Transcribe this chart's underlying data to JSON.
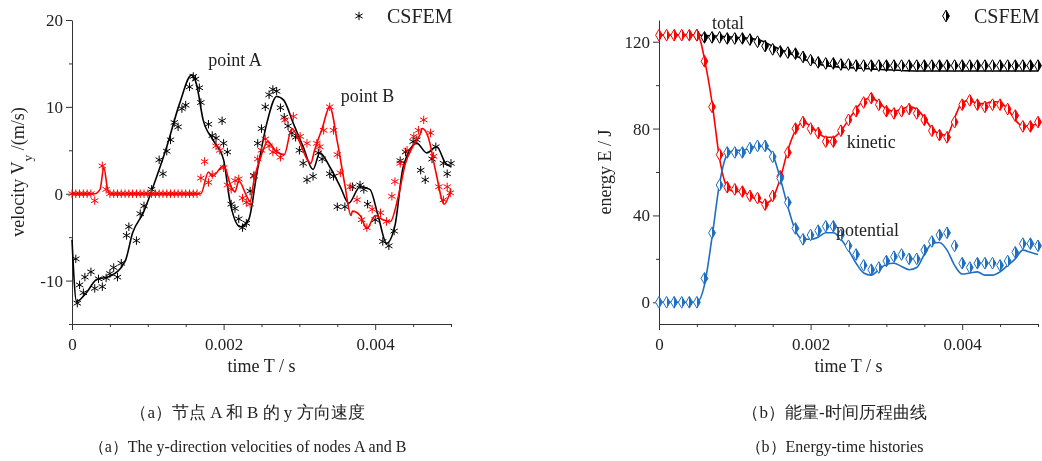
{
  "chart_data": [
    {
      "type": "line",
      "title": "（a）节点 A 和 B 的 y 方向速度",
      "subtitle": "（a）The y-direction velocities of nodes A and B",
      "xlabel": "time T / s",
      "ylabel": "velocity V$_{y}$ /(m/s)",
      "xlim": [
        0,
        0.005
      ],
      "ylim": [
        -15,
        20
      ],
      "xticks": [
        0,
        {
          "value": 0.0005,
          "label": null
        },
        {
          "value": 0.001,
          "label": null
        },
        {
          "value": 0.0015,
          "label": null
        },
        0.002,
        {
          "value": 0.0025,
          "label": null
        },
        {
          "value": 0.003,
          "label": null
        },
        {
          "value": 0.0035,
          "label": null
        },
        0.004,
        {
          "value": 0.0045,
          "label": null
        },
        {
          "value": 0.005,
          "label": null
        }
      ],
      "yticks": [
        {
          "value": -15,
          "label": null
        },
        -10,
        {
          "value": -5,
          "label": null
        },
        0,
        {
          "value": 5,
          "label": null
        },
        10,
        {
          "value": 15,
          "label": null
        },
        20
      ],
      "grid": false,
      "legend": "top right",
      "annotations": [
        "point A",
        "point B"
      ],
      "series": [
        {
          "type": "line",
          "color": "#000000",
          "marker": "none",
          "x": [
            0,
            6e-05,
            0.00019,
            0.00032,
            0.0005,
            0.0007,
            0.0008,
            0.00094,
            0.00107,
            0.00125,
            0.00142,
            0.00158,
            0.00164,
            0.00173,
            0.00186,
            0.002,
            0.00208,
            0.00222,
            0.00233,
            0.00244,
            0.00257,
            0.0027,
            0.00279,
            0.00292,
            0.00305,
            0.00318,
            0.00327,
            0.0034,
            0.00354,
            0.00365,
            0.0038,
            0.00393,
            0.00404,
            0.00415,
            0.00426,
            0.00437,
            0.00455,
            0.00468,
            0.00481,
            0.00493,
            0.005
          ],
          "values": [
            -5.3,
            -12.4,
            -11.4,
            -9.9,
            -9.5,
            -7.8,
            -4.5,
            -2.2,
            0.8,
            5.4,
            10.4,
            13.7,
            12.7,
            8.5,
            6.2,
            3.9,
            -0.7,
            -3.8,
            -3,
            2.4,
            8.1,
            11.2,
            10.8,
            8.1,
            5.4,
            2.8,
            4.7,
            3.1,
            0.8,
            -1.1,
            0.8,
            0.5,
            -2.6,
            -5.7,
            -3.7,
            3.1,
            5.8,
            4.7,
            5.4,
            3.5,
            3.1
          ]
        },
        {
          "type": "scatter",
          "name": "CSFEM",
          "color": "#000000",
          "marker": "cross",
          "x": [
            5e-05,
            7e-05,
            0.0001,
            0.00015,
            0.00017,
            0.00025,
            0.0003,
            0.00035,
            0.0004,
            0.00045,
            0.0005,
            0.00055,
            0.0006,
            0.00065,
            0.00072,
            0.00075,
            0.00085,
            0.0009,
            0.00095,
            0.00105,
            0.00115,
            0.0012,
            0.00125,
            0.0013,
            0.00135,
            0.0014,
            0.00145,
            0.0015,
            0.00155,
            0.0016,
            0.00163,
            0.00168,
            0.0017,
            0.0018,
            0.00185,
            0.0019,
            0.00198,
            0.002,
            0.00205,
            0.0021,
            0.00215,
            0.0022,
            0.00225,
            0.0023,
            0.00235,
            0.0024,
            0.00245,
            0.0025,
            0.00255,
            0.0026,
            0.00265,
            0.0027,
            0.00275,
            0.0028,
            0.00285,
            0.0029,
            0.00295,
            0.003,
            0.00305,
            0.0031,
            0.00318,
            0.00325,
            0.0033,
            0.0034,
            0.00345,
            0.0035,
            0.0036,
            0.0037,
            0.0038,
            0.00385,
            0.0039,
            0.004,
            0.0041,
            0.00418,
            0.00425,
            0.00433,
            0.0044,
            0.0045,
            0.00455,
            0.0046,
            0.00466,
            0.00475,
            0.0048,
            0.0049,
            0.00495,
            0.005
          ],
          "values": [
            -7.5,
            -12.6,
            -10.5,
            -11.4,
            -9.6,
            -9,
            -10.9,
            -9.8,
            -10.7,
            -9.7,
            -9.2,
            -8.5,
            -9.6,
            -8,
            -4.8,
            -3.8,
            -5.4,
            -2.3,
            -1.4,
            0.5,
            3.9,
            2.3,
            4.9,
            6.2,
            8.2,
            7.7,
            9.8,
            10.2,
            12.3,
            13.5,
            13.2,
            12.2,
            10.5,
            8,
            6.7,
            6.4,
            8.4,
            5.8,
            4.8,
            -1.2,
            -1.7,
            -2.9,
            -3.9,
            -3.4,
            0.3,
            2.1,
            5.8,
            7.5,
            10,
            11.4,
            12,
            11.8,
            9.9,
            8.8,
            7.8,
            7,
            6.5,
            5,
            3.5,
            1.6,
            2,
            4.7,
            4,
            2.3,
            2,
            -1.5,
            -1.5,
            0.8,
            1,
            0.5,
            -1.2,
            -3,
            -5.5,
            -6,
            -4.3,
            3.8,
            4.8,
            6,
            6.2,
            2.7,
            1.6,
            4,
            5.4,
            3.5,
            2.3,
            3.5
          ]
        },
        {
          "type": "line",
          "color": "#ff0000",
          "marker": "none",
          "x": [
            0,
            0.0003,
            0.00037,
            0.00042,
            0.00047,
            0.0005,
            0.0017,
            0.0018,
            0.00185,
            0.002,
            0.0021,
            0.00215,
            0.0022,
            0.0023,
            0.00235,
            0.0024,
            0.0025,
            0.00258,
            0.0027,
            0.0028,
            0.0029,
            0.003,
            0.0031,
            0.00315,
            0.0032,
            0.0033,
            0.0034,
            0.0035,
            0.0036,
            0.00368,
            0.0037,
            0.0038,
            0.00389,
            0.004,
            0.0041,
            0.0042,
            0.0043,
            0.0044,
            0.0045,
            0.0046,
            0.00462,
            0.0047,
            0.0048,
            0.00491,
            0.005
          ],
          "values": [
            0,
            0,
            0.5,
            3,
            0.5,
            0,
            0,
            2.5,
            2,
            3.2,
            0.8,
            0.2,
            1.5,
            -0.2,
            -0.9,
            1.5,
            4.5,
            6,
            4.8,
            4.5,
            7.5,
            6,
            4,
            3.5,
            5,
            7.5,
            10,
            6,
            1,
            -2.5,
            -2,
            -2.5,
            -4,
            -2.5,
            -3,
            -3.2,
            -0.5,
            3.5,
            5.5,
            7,
            7.5,
            6.5,
            2.5,
            -1.2,
            0.5
          ]
        },
        {
          "type": "scatter",
          "color": "#ff0000",
          "marker": "cross",
          "x": [
            0,
            5e-05,
            0.0001,
            0.00015,
            0.0002,
            0.00025,
            0.0003,
            0.0004,
            0.00045,
            0.0005,
            0.00055,
            0.0006,
            0.00065,
            0.0007,
            0.00075,
            0.0008,
            0.00085,
            0.0009,
            0.00095,
            0.001,
            0.00105,
            0.0011,
            0.00115,
            0.0012,
            0.00125,
            0.0013,
            0.00135,
            0.0014,
            0.00145,
            0.0015,
            0.00155,
            0.0016,
            0.00165,
            0.0017,
            0.00175,
            0.0018,
            0.00185,
            0.0019,
            0.00195,
            0.002,
            0.00205,
            0.0021,
            0.00215,
            0.0022,
            0.00225,
            0.0023,
            0.00235,
            0.0024,
            0.00245,
            0.0025,
            0.00255,
            0.0026,
            0.00265,
            0.0027,
            0.00275,
            0.00281,
            0.00292,
            0.00301,
            0.0031,
            0.00323,
            0.00327,
            0.00332,
            0.0034,
            0.00345,
            0.0035,
            0.00354,
            0.00367,
            0.00376,
            0.00382,
            0.00389,
            0.00396,
            0.00407,
            0.00415,
            0.00422,
            0.00426,
            0.00433,
            0.00442,
            0.00451,
            0.00457,
            0.00464,
            0.00473,
            0.00477,
            0.00484,
            0.0049,
            0.00495,
            0.00499
          ],
          "values": [
            0,
            0,
            0,
            0,
            0,
            0,
            -0.8,
            3.2,
            0.5,
            0,
            0,
            0,
            0,
            0,
            0,
            0,
            0,
            0,
            0,
            0,
            0,
            0,
            0,
            0,
            0,
            0,
            0,
            0,
            0,
            0,
            0,
            0,
            0,
            1.8,
            3.7,
            1.3,
            2.2,
            5.5,
            5,
            3,
            1,
            0.5,
            1.5,
            1.7,
            -0.5,
            -1,
            -1.2,
            2,
            4,
            5,
            6.3,
            5.5,
            4.8,
            4.9,
            4.2,
            8.5,
            8.9,
            6.6,
            5.8,
            5.8,
            5.4,
            7.3,
            10,
            7.3,
            4.5,
            2.4,
            0.8,
            -0.7,
            -3,
            -3.9,
            -1.8,
            -2.2,
            -3.2,
            -0.3,
            1.4,
            3.5,
            5,
            6.6,
            7.3,
            8.5,
            7,
            4.3,
            0.8,
            -0.7,
            0.8,
            0.1
          ]
        }
      ]
    },
    {
      "type": "line",
      "title": "（b）能量-时间历程曲线",
      "subtitle": "（b）Energy-time histories",
      "xlabel": "time T / s",
      "ylabel": "energy E / J",
      "xlim": [
        0,
        0.005
      ],
      "ylim": [
        -10,
        130
      ],
      "xticks": [
        0,
        {
          "value": 0.0005,
          "label": null
        },
        {
          "value": 0.001,
          "label": null
        },
        {
          "value": 0.0015,
          "label": null
        },
        0.002,
        {
          "value": 0.0025,
          "label": null
        },
        {
          "value": 0.003,
          "label": null
        },
        {
          "value": 0.0035,
          "label": null
        },
        0.004,
        {
          "value": 0.0045,
          "label": null
        },
        {
          "value": 0.005,
          "label": null
        }
      ],
      "yticks": [
        0,
        {
          "value": 20,
          "label": null
        },
        40,
        {
          "value": 60,
          "label": null
        },
        80,
        {
          "value": 100,
          "label": null
        },
        120
      ],
      "grid": false,
      "legend": "top right",
      "annotations": [
        {
          "text": "total",
          "x": 0.00091,
          "y": 126
        },
        "kinetic",
        "potential"
      ],
      "series": [
        {
          "type": "line",
          "color": "#000000",
          "marker": "none",
          "x": [
            0,
            0.0005,
            0.001,
            0.0013,
            0.0015,
            0.0017,
            0.0019,
            0.0022,
            0.0028,
            0.0035,
            0.005
          ],
          "values": [
            123,
            123,
            122,
            121,
            118,
            115,
            112,
            109,
            107.5,
            106.5,
            106.5
          ]
        },
        {
          "type": "scatter",
          "name": "CSFEM",
          "color": "#000000",
          "marker": "diamond",
          "x": [
            0.0005,
            0.0006,
            0.0007,
            0.0008,
            0.0009,
            0.001,
            0.0011,
            0.0012,
            0.0013,
            0.0014,
            0.0015,
            0.0016,
            0.0017,
            0.0018,
            0.0019,
            0.002,
            0.0021,
            0.0022,
            0.0023,
            0.0024,
            0.0025,
            0.0026,
            0.0027,
            0.0028,
            0.0029,
            0.003,
            0.0031,
            0.0032,
            0.0033,
            0.0034,
            0.0035,
            0.0036,
            0.0037,
            0.0038,
            0.0039,
            0.004,
            0.0041,
            0.0042,
            0.0043,
            0.0044,
            0.0045,
            0.0046,
            0.0047,
            0.0048,
            0.0049,
            0.005
          ],
          "values": [
            123,
            122,
            122,
            122,
            121.5,
            121.5,
            121.5,
            121,
            120,
            118,
            116.5,
            115.5,
            115,
            114.5,
            113,
            111.5,
            110.5,
            110,
            110,
            109.5,
            109.5,
            109,
            109,
            109,
            109,
            109,
            109,
            109,
            109,
            109,
            109,
            109,
            109,
            109,
            109,
            109,
            109,
            109,
            109,
            109,
            109,
            109,
            109,
            109,
            109,
            109
          ]
        },
        {
          "type": "line",
          "color": "#ff0000",
          "marker": "none",
          "x": [
            0,
            0.0005,
            0.00055,
            0.0006,
            0.0007,
            0.0008,
            0.0009,
            0.001,
            0.0011,
            0.0012,
            0.0013,
            0.0014,
            0.0015,
            0.0016,
            0.0017,
            0.0018,
            0.0019,
            0.002,
            0.0021,
            0.0022,
            0.0023,
            0.0024,
            0.0025,
            0.0026,
            0.0027,
            0.0028,
            0.0029,
            0.003,
            0.0031,
            0.0032,
            0.0033,
            0.0034,
            0.0035,
            0.0036,
            0.0037,
            0.0038,
            0.0039,
            0.004,
            0.0041,
            0.0042,
            0.0043,
            0.0044,
            0.0045,
            0.0046,
            0.0047,
            0.0048,
            0.0049,
            0.005
          ],
          "values": [
            123,
            123,
            120,
            112,
            92,
            66,
            53,
            51,
            51,
            49,
            47,
            45.5,
            48,
            57,
            70,
            79,
            83,
            81,
            78,
            76,
            76,
            79,
            84,
            89,
            93,
            94,
            92,
            89,
            88,
            89,
            90,
            89,
            85,
            80,
            77.5,
            77,
            85,
            92,
            93,
            91.5,
            91.5,
            92.5,
            92,
            89,
            84,
            81,
            81.5,
            82
          ]
        },
        {
          "type": "scatter",
          "color": "#ff0000",
          "marker": "diamond",
          "x": [
            0,
            0.0001,
            0.0002,
            0.0003,
            0.0004,
            0.0005,
            0.0006,
            0.0007,
            0.0008,
            0.0009,
            0.001,
            0.0011,
            0.0012,
            0.0013,
            0.0014,
            0.0015,
            0.0016,
            0.0017,
            0.0018,
            0.0019,
            0.002,
            0.0021,
            0.0022,
            0.0023,
            0.0024,
            0.0025,
            0.0026,
            0.0027,
            0.0028,
            0.0029,
            0.003,
            0.0031,
            0.0032,
            0.0033,
            0.0034,
            0.0035,
            0.0036,
            0.0037,
            0.0038,
            0.0039,
            0.004,
            0.0041,
            0.0042,
            0.0043,
            0.0044,
            0.0045,
            0.0046,
            0.0047,
            0.0048,
            0.0049,
            0.005
          ],
          "values": [
            123,
            123,
            123,
            123,
            123,
            123,
            111,
            90,
            68,
            53,
            52,
            51,
            49,
            48,
            45,
            49,
            58,
            69,
            80,
            83,
            80,
            78,
            74,
            74,
            79,
            84,
            88,
            92,
            94,
            91,
            88,
            87,
            88,
            89,
            87,
            84,
            79,
            77,
            76,
            83,
            91,
            93,
            91,
            90,
            91,
            91,
            89,
            86,
            81,
            81,
            83
          ]
        },
        {
          "type": "line",
          "color": "#1f6fc0",
          "marker": "none",
          "x": [
            0,
            0.0005,
            0.0006,
            0.0007,
            0.0008,
            0.0009,
            0.001,
            0.0011,
            0.0012,
            0.0013,
            0.0014,
            0.0015,
            0.0016,
            0.0017,
            0.0018,
            0.0019,
            0.002,
            0.0021,
            0.0022,
            0.0023,
            0.0024,
            0.0025,
            0.0026,
            0.0027,
            0.0028,
            0.0029,
            0.003,
            0.0031,
            0.0032,
            0.0033,
            0.0034,
            0.0035,
            0.0036,
            0.0037,
            0.0038,
            0.0039,
            0.004,
            0.0041,
            0.0042,
            0.0043,
            0.0044,
            0.0045,
            0.0046,
            0.0047,
            0.0048,
            0.0049,
            0.005
          ],
          "values": [
            0,
            0,
            8,
            30,
            55,
            68,
            70,
            70,
            71,
            72,
            71.5,
            68,
            57,
            44,
            33,
            29,
            29,
            30,
            32,
            32,
            29,
            24,
            18,
            13.5,
            12.5,
            15,
            17.5,
            18,
            16.5,
            15,
            16,
            22,
            27,
            27.5,
            24,
            17,
            13,
            13.5,
            14,
            12.5,
            12.5,
            14,
            17,
            20,
            24,
            23,
            22
          ]
        },
        {
          "type": "scatter",
          "color": "#1f6fc0",
          "marker": "diamond",
          "x": [
            0,
            0.0001,
            0.0002,
            0.0003,
            0.0004,
            0.0005,
            0.0006,
            0.0007,
            0.0008,
            0.0009,
            0.001,
            0.0011,
            0.0012,
            0.0013,
            0.0014,
            0.0015,
            0.0016,
            0.0017,
            0.0018,
            0.0019,
            0.002,
            0.0021,
            0.0022,
            0.0023,
            0.0024,
            0.0025,
            0.0026,
            0.0027,
            0.0028,
            0.0029,
            0.003,
            0.0031,
            0.0032,
            0.0033,
            0.0034,
            0.0035,
            0.0036,
            0.0037,
            0.0038,
            0.0039,
            0.004,
            0.0041,
            0.0042,
            0.0043,
            0.0044,
            0.0045,
            0.0046,
            0.0047,
            0.0048,
            0.0049,
            0.005
          ],
          "values": [
            0,
            0,
            0,
            0,
            0,
            0,
            11,
            32,
            54,
            69,
            69,
            69,
            71,
            72,
            72,
            67,
            57,
            46,
            34,
            29,
            31,
            33,
            35,
            35,
            31,
            26,
            22,
            17,
            15,
            16,
            19,
            21,
            22,
            20,
            20,
            24,
            28,
            31,
            32,
            26,
            18,
            16,
            18,
            18,
            18,
            17,
            19,
            23,
            27,
            27,
            26
          ]
        }
      ]
    }
  ]
}
